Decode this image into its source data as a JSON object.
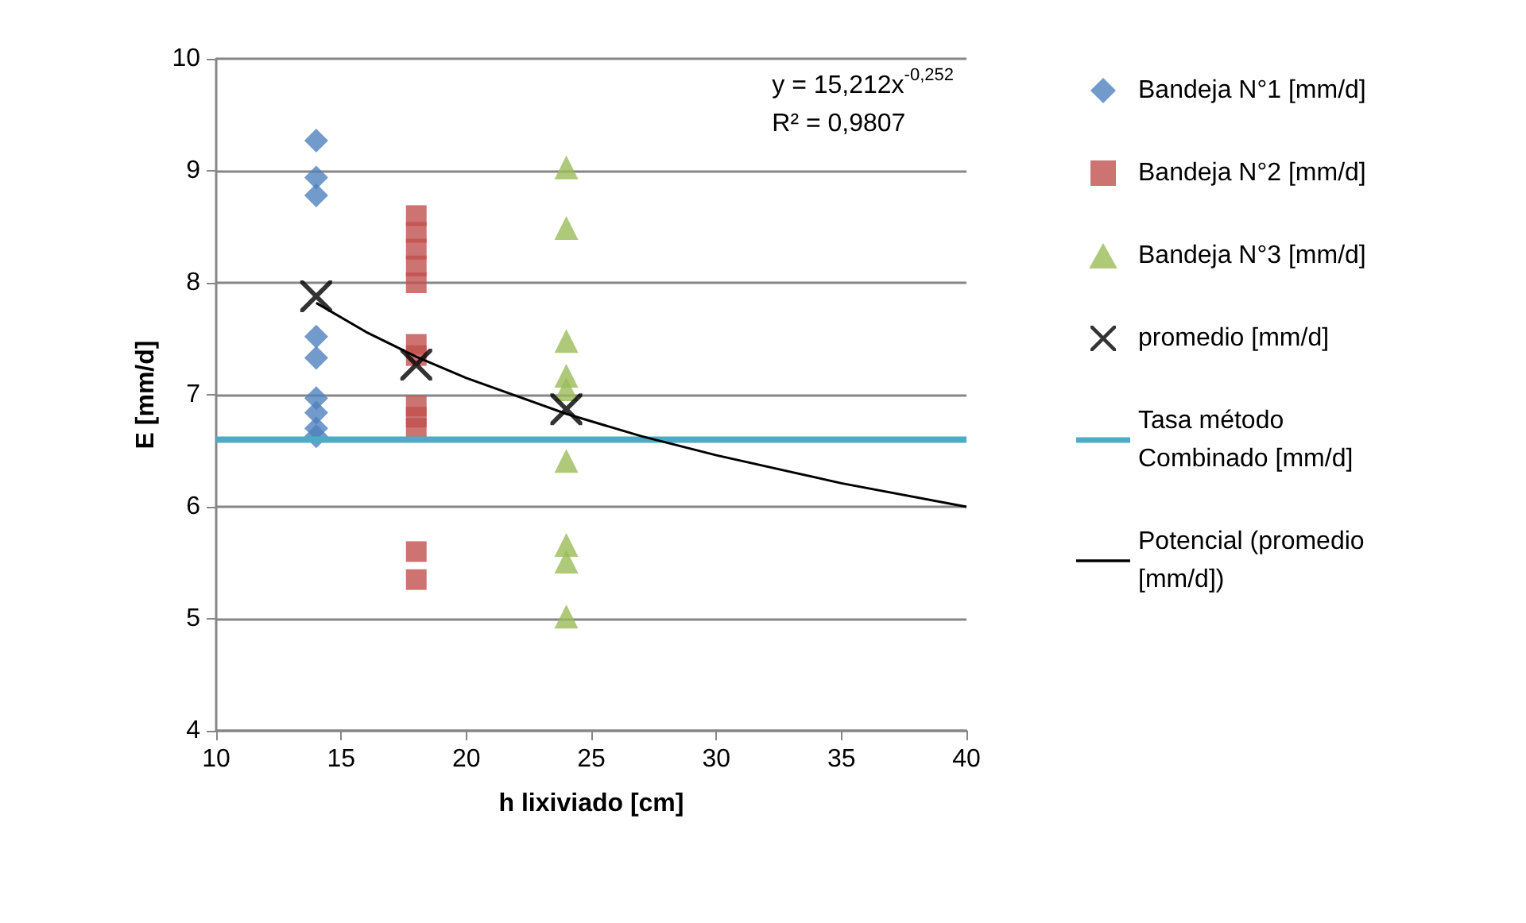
{
  "chart_data": {
    "type": "scatter",
    "xlabel": "h lixiviado [cm]",
    "ylabel": "E [mm/d]",
    "xlim": [
      10,
      40
    ],
    "xticks": [
      10,
      15,
      20,
      25,
      30,
      35,
      40
    ],
    "ylim": [
      4,
      10
    ],
    "yticks": [
      4,
      5,
      6,
      7,
      8,
      9,
      10
    ],
    "grid": "y",
    "legend": "right",
    "annotations": [
      "y = 15,212x$^{-0,252}$",
      "R² = 0,9807"
    ],
    "series": [
      {
        "name": "Bandeja N°1 [mm/d]",
        "color": "#4f81bd",
        "marker": "diamond",
        "x": [
          14,
          14,
          14,
          14,
          14,
          14,
          14,
          14,
          14
        ],
        "values": [
          9.27,
          8.94,
          8.78,
          7.52,
          7.33,
          6.97,
          6.84,
          6.7,
          6.63
        ]
      },
      {
        "name": "Bandeja N°2 [mm/d]",
        "color": "#c0504d",
        "marker": "square",
        "x": [
          18,
          18,
          18,
          18,
          18,
          18,
          18,
          18,
          18,
          18,
          18,
          18
        ],
        "values": [
          8.6,
          8.45,
          8.3,
          8.15,
          8.0,
          7.45,
          7.35,
          6.9,
          6.8,
          6.7,
          5.6,
          5.35
        ]
      },
      {
        "name": "Bandeja N°3 [mm/d]",
        "color": "#9bbb59",
        "marker": "triangle",
        "x": [
          24,
          24,
          24,
          24,
          24,
          24,
          24,
          24,
          24
        ],
        "values": [
          9.03,
          8.49,
          7.48,
          7.17,
          7.05,
          6.41,
          5.66,
          5.51,
          5.02
        ]
      },
      {
        "name": "promedio [mm/d]",
        "color": "#000000",
        "marker": "cross",
        "x": [
          14,
          18,
          24
        ],
        "values": [
          7.88,
          7.27,
          6.87
        ]
      },
      {
        "name": "Tasa método Combinado [mm/d]",
        "type": "line",
        "color": "#4bacc6",
        "marker": "none",
        "x": [
          10,
          40
        ],
        "values": [
          6.6,
          6.6
        ]
      },
      {
        "name": "Potencial (promedio [mm/d])",
        "type": "line",
        "color": "#000000",
        "marker": "none",
        "x": [
          14,
          16,
          18,
          20,
          24,
          27,
          30,
          35,
          40
        ],
        "values": [
          7.82,
          7.56,
          7.34,
          7.15,
          6.83,
          6.63,
          6.46,
          6.21,
          6.0
        ]
      }
    ]
  }
}
